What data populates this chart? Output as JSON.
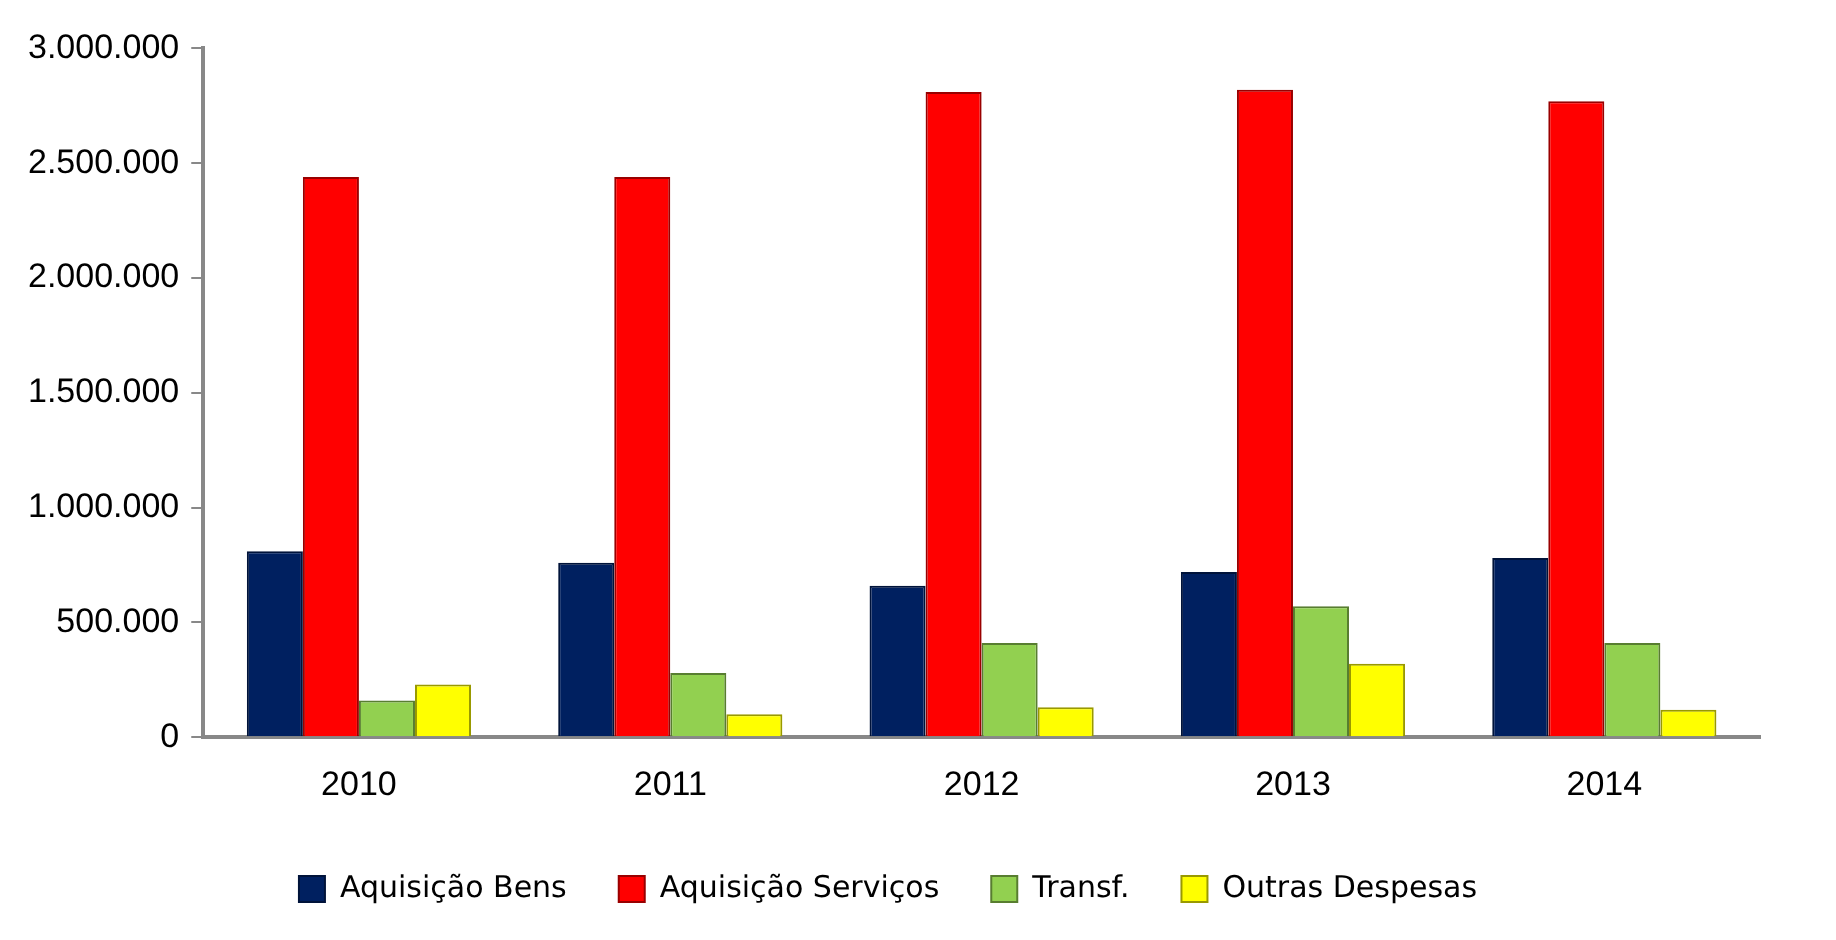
{
  "chart_data": {
    "type": "bar",
    "categories": [
      "2010",
      "2011",
      "2012",
      "2013",
      "2014"
    ],
    "series": [
      {
        "name": "Aquisição Bens",
        "color": "#002060",
        "values": [
          810000,
          760000,
          660000,
          720000,
          780000
        ]
      },
      {
        "name": "Aquisição Serviços",
        "color": "#ff0000",
        "values": [
          2440000,
          2440000,
          2810000,
          2820000,
          2770000
        ]
      },
      {
        "name": "Transf.",
        "color": "#92d050",
        "values": [
          160000,
          280000,
          410000,
          570000,
          410000
        ]
      },
      {
        "name": "Outras Despesas",
        "color": "#ffff00",
        "values": [
          230000,
          100000,
          130000,
          320000,
          120000
        ]
      }
    ],
    "ylim": [
      0,
      3000000
    ],
    "yticks": [
      0,
      {
        "value": 500000,
        "label": "500.000"
      },
      {
        "value": 1000000,
        "label": "1.000.000"
      },
      {
        "value": 1500000,
        "label": "1.500.000"
      },
      {
        "value": 2000000,
        "label": "2.000.000"
      },
      {
        "value": 2500000,
        "label": "2.500.000"
      },
      {
        "value": 3000000,
        "label": "3.000.000"
      }
    ],
    "grid": false,
    "legend": "bottom"
  }
}
